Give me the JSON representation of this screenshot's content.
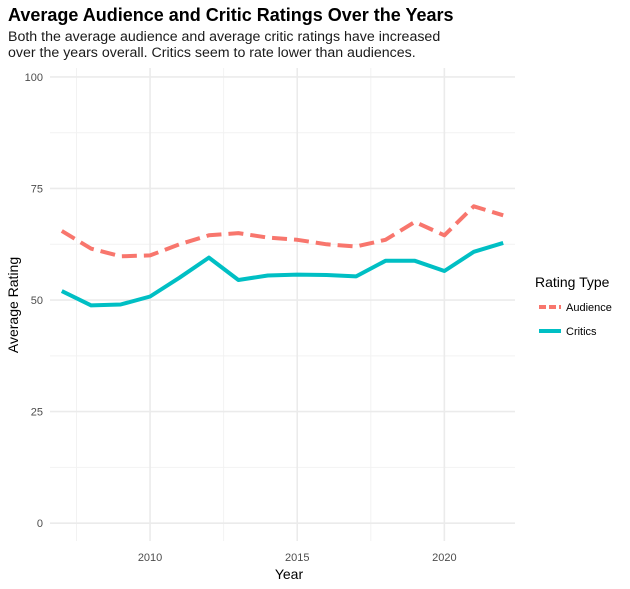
{
  "chart_data": {
    "type": "line",
    "title": "Average Audience and Critic Ratings Over the Years",
    "subtitle": [
      "Both the average audience and average critic ratings have increased",
      "over the years overall. Critics seem to rate lower than audiences."
    ],
    "xlabel": "Year",
    "ylabel": "Average Rating",
    "xlim": [
      2006.6,
      2022.4
    ],
    "ylim": [
      -4,
      102
    ],
    "x_ticks": [
      2010,
      2015,
      2020
    ],
    "y_ticks": [
      0,
      25,
      50,
      75,
      100
    ],
    "grid": true,
    "legend": {
      "title": "Rating Type",
      "placement": "right"
    },
    "x": [
      2007,
      2008,
      2009,
      2010,
      2011,
      2012,
      2013,
      2014,
      2015,
      2016,
      2017,
      2018,
      2019,
      2020,
      2021,
      2022
    ],
    "series": [
      {
        "name": "Audience",
        "color": "#F8766D",
        "dash": "dashed",
        "values": [
          65.5,
          61.5,
          59.8,
          60.0,
          62.5,
          64.5,
          65.0,
          64.0,
          63.5,
          62.5,
          62.0,
          63.5,
          67.5,
          64.5,
          71.0,
          69.0
        ]
      },
      {
        "name": "Critics",
        "color": "#00BFC4",
        "dash": "solid",
        "values": [
          52.0,
          48.8,
          49.0,
          50.8,
          55.0,
          59.5,
          54.5,
          55.5,
          55.7,
          55.6,
          55.3,
          58.8,
          58.8,
          56.5,
          60.8,
          62.8
        ]
      }
    ]
  }
}
